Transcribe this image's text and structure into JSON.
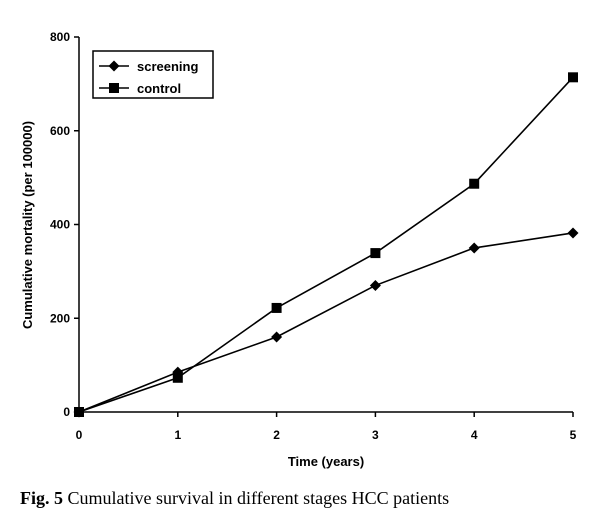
{
  "chart_data": {
    "type": "line",
    "title": "",
    "xlabel": "Time (years)",
    "ylabel": "Cumulative mortality (per 100000)",
    "x": [
      0,
      1,
      2,
      3,
      4,
      5
    ],
    "xticks": [
      "0",
      "1",
      "2",
      "3",
      "4",
      "5"
    ],
    "yticks": [
      "0",
      "200",
      "400",
      "600",
      "800"
    ],
    "xlim": [
      0,
      5
    ],
    "ylim": [
      0,
      800
    ],
    "grid": false,
    "legend_position": "top-left",
    "series": [
      {
        "name": "screening",
        "marker": "diamond",
        "color": "#000000",
        "values": [
          0,
          85,
          160,
          270,
          350,
          382
        ]
      },
      {
        "name": "control",
        "marker": "square",
        "color": "#000000",
        "values": [
          0,
          73,
          222,
          339,
          487,
          714
        ]
      }
    ]
  },
  "caption": {
    "label": "Fig. 5",
    "text": "Cumulative survival in different stages HCC patients"
  }
}
